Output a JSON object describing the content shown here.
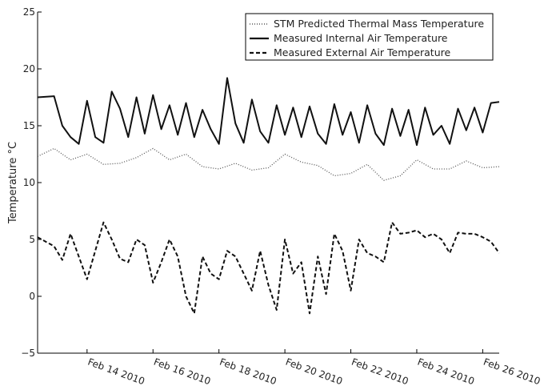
{
  "chart_data": {
    "type": "line",
    "title": "",
    "xlabel": "",
    "ylabel": "Temperature °C",
    "ylim": [
      -5,
      25
    ],
    "xlim": [
      "2010-02-12T12:00",
      "2010-02-26T12:00"
    ],
    "yticks": [
      -5,
      0,
      5,
      10,
      15,
      20,
      25
    ],
    "xticks": [
      "Feb 14 2010",
      "Feb 16 2010",
      "Feb 18 2010",
      "Feb 20 2010",
      "Feb 22 2010",
      "Feb 24 2010",
      "Feb 26 2010"
    ],
    "grid": false,
    "legend_position": "top-right",
    "series": [
      {
        "name": "STM Predicted Thermal Mass Temperature",
        "style": "dotted",
        "color": "#555555",
        "x": [
          "2010-02-12T12:00",
          "2010-02-13T00:00",
          "2010-02-13T12:00",
          "2010-02-14T00:00",
          "2010-02-14T12:00",
          "2010-02-15T00:00",
          "2010-02-15T12:00",
          "2010-02-16T00:00",
          "2010-02-16T12:00",
          "2010-02-17T00:00",
          "2010-02-17T12:00",
          "2010-02-18T00:00",
          "2010-02-18T12:00",
          "2010-02-19T00:00",
          "2010-02-19T12:00",
          "2010-02-20T00:00",
          "2010-02-20T12:00",
          "2010-02-21T00:00",
          "2010-02-21T12:00",
          "2010-02-22T00:00",
          "2010-02-22T12:00",
          "2010-02-23T00:00",
          "2010-02-23T12:00",
          "2010-02-24T00:00",
          "2010-02-24T12:00",
          "2010-02-25T00:00",
          "2010-02-25T12:00",
          "2010-02-26T00:00",
          "2010-02-26T12:00"
        ],
        "y": [
          12.3,
          13.0,
          12.0,
          12.5,
          11.6,
          11.7,
          12.2,
          13.0,
          12.0,
          12.5,
          11.4,
          11.2,
          11.7,
          11.1,
          11.3,
          12.5,
          11.8,
          11.5,
          10.6,
          10.8,
          11.6,
          10.2,
          10.6,
          12.0,
          11.2,
          11.2,
          11.9,
          11.3,
          11.4
        ]
      },
      {
        "name": "Measured Internal Air Temperature",
        "style": "solid",
        "color": "#111111",
        "x": [
          "2010-02-12T12:00",
          "2010-02-13T00:00",
          "2010-02-13T06:00",
          "2010-02-13T12:00",
          "2010-02-13T18:00",
          "2010-02-14T00:00",
          "2010-02-14T06:00",
          "2010-02-14T12:00",
          "2010-02-14T18:00",
          "2010-02-15T00:00",
          "2010-02-15T06:00",
          "2010-02-15T12:00",
          "2010-02-15T18:00",
          "2010-02-16T00:00",
          "2010-02-16T06:00",
          "2010-02-16T12:00",
          "2010-02-16T18:00",
          "2010-02-17T00:00",
          "2010-02-17T06:00",
          "2010-02-17T12:00",
          "2010-02-17T18:00",
          "2010-02-18T00:00",
          "2010-02-18T06:00",
          "2010-02-18T12:00",
          "2010-02-18T18:00",
          "2010-02-19T00:00",
          "2010-02-19T06:00",
          "2010-02-19T12:00",
          "2010-02-19T18:00",
          "2010-02-20T00:00",
          "2010-02-20T06:00",
          "2010-02-20T12:00",
          "2010-02-20T18:00",
          "2010-02-21T00:00",
          "2010-02-21T06:00",
          "2010-02-21T12:00",
          "2010-02-21T18:00",
          "2010-02-22T00:00",
          "2010-02-22T06:00",
          "2010-02-22T12:00",
          "2010-02-22T18:00",
          "2010-02-23T00:00",
          "2010-02-23T06:00",
          "2010-02-23T12:00",
          "2010-02-23T18:00",
          "2010-02-24T00:00",
          "2010-02-24T06:00",
          "2010-02-24T12:00",
          "2010-02-24T18:00",
          "2010-02-25T00:00",
          "2010-02-25T06:00",
          "2010-02-25T12:00",
          "2010-02-25T18:00",
          "2010-02-26T00:00",
          "2010-02-26T06:00",
          "2010-02-26T12:00"
        ],
        "y": [
          17.5,
          17.6,
          15.0,
          14.0,
          13.4,
          17.2,
          14.0,
          13.5,
          18.0,
          16.5,
          14.0,
          17.5,
          14.3,
          17.7,
          14.7,
          16.8,
          14.2,
          17.0,
          14.0,
          16.4,
          14.7,
          13.4,
          19.2,
          15.2,
          13.5,
          17.3,
          14.5,
          13.5,
          16.8,
          14.2,
          16.6,
          14.0,
          16.7,
          14.3,
          13.4,
          16.9,
          14.2,
          16.2,
          13.5,
          16.8,
          14.3,
          13.3,
          16.5,
          14.1,
          16.4,
          13.3,
          16.6,
          14.2,
          15.0,
          13.4,
          16.5,
          14.6,
          16.6,
          14.4,
          17.0,
          17.1
        ]
      },
      {
        "name": "Measured External Air Temperature",
        "style": "dashed",
        "color": "#111111",
        "x": [
          "2010-02-12T12:00",
          "2010-02-13T00:00",
          "2010-02-13T06:00",
          "2010-02-13T12:00",
          "2010-02-13T18:00",
          "2010-02-14T00:00",
          "2010-02-14T06:00",
          "2010-02-14T12:00",
          "2010-02-14T18:00",
          "2010-02-15T00:00",
          "2010-02-15T06:00",
          "2010-02-15T12:00",
          "2010-02-15T18:00",
          "2010-02-16T00:00",
          "2010-02-16T06:00",
          "2010-02-16T12:00",
          "2010-02-16T18:00",
          "2010-02-17T00:00",
          "2010-02-17T06:00",
          "2010-02-17T12:00",
          "2010-02-17T18:00",
          "2010-02-18T00:00",
          "2010-02-18T06:00",
          "2010-02-18T12:00",
          "2010-02-18T18:00",
          "2010-02-19T00:00",
          "2010-02-19T06:00",
          "2010-02-19T12:00",
          "2010-02-19T18:00",
          "2010-02-20T00:00",
          "2010-02-20T06:00",
          "2010-02-20T12:00",
          "2010-02-20T18:00",
          "2010-02-21T00:00",
          "2010-02-21T06:00",
          "2010-02-21T12:00",
          "2010-02-21T18:00",
          "2010-02-22T00:00",
          "2010-02-22T06:00",
          "2010-02-22T12:00",
          "2010-02-22T18:00",
          "2010-02-23T00:00",
          "2010-02-23T06:00",
          "2010-02-23T12:00",
          "2010-02-23T18:00",
          "2010-02-24T00:00",
          "2010-02-24T06:00",
          "2010-02-24T12:00",
          "2010-02-24T18:00",
          "2010-02-25T00:00",
          "2010-02-25T06:00",
          "2010-02-25T12:00",
          "2010-02-25T18:00",
          "2010-02-26T00:00",
          "2010-02-26T06:00",
          "2010-02-26T12:00"
        ],
        "y": [
          5.2,
          4.4,
          3.2,
          5.5,
          3.5,
          1.5,
          4.0,
          6.5,
          5.0,
          3.3,
          3.0,
          5.0,
          4.5,
          1.2,
          3.0,
          5.0,
          3.5,
          0.0,
          -1.5,
          3.5,
          2.0,
          1.5,
          4.0,
          3.5,
          2.0,
          0.5,
          4.0,
          1.0,
          -1.2,
          5.0,
          2.0,
          3.0,
          -1.5,
          3.5,
          0.2,
          5.5,
          4.0,
          0.5,
          5.0,
          3.8,
          3.5,
          3.0,
          6.5,
          5.5,
          5.6,
          5.8,
          5.2,
          5.5,
          5.0,
          3.8,
          5.6,
          5.5,
          5.5,
          5.2,
          4.8,
          3.8
        ]
      }
    ]
  }
}
